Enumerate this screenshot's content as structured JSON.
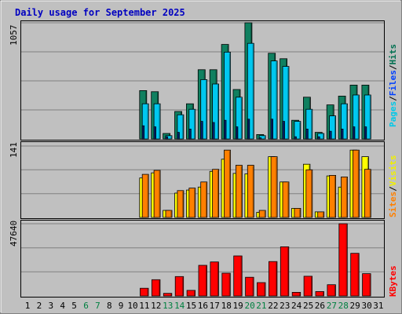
{
  "title": "Daily usage for September 2025",
  "panels": {
    "top": {
      "max_label": "1057",
      "legend": [
        {
          "text": "Pages",
          "color": "#00c8e8"
        },
        {
          "text": "/",
          "color": "#000000"
        },
        {
          "text": "Files",
          "color": "#0040ff"
        },
        {
          "text": "/",
          "color": "#000000"
        },
        {
          "text": "Hits",
          "color": "#007050"
        }
      ]
    },
    "middle": {
      "max_label": "141",
      "legend": [
        {
          "text": "Sites",
          "color": "#ff8000"
        },
        {
          "text": "/",
          "color": "#000000"
        },
        {
          "text": "Visits",
          "color": "#f0f000"
        }
      ]
    },
    "bottom": {
      "max_label": "47640",
      "legend": [
        {
          "text": "KBytes",
          "color": "#ff0000"
        }
      ]
    }
  },
  "colors": {
    "hits": "#108060",
    "files": "#0030a0",
    "pages": "#00c8f0",
    "visits": "#ffff00",
    "sites": "#ff8000",
    "kbytes": "#ff0000",
    "title": "#0000c0",
    "weekend_day": "#008040",
    "weekday": "#000000"
  },
  "chart_data": {
    "type": "bar",
    "x": [
      1,
      2,
      3,
      4,
      5,
      6,
      7,
      8,
      9,
      10,
      11,
      12,
      13,
      14,
      15,
      16,
      17,
      18,
      19,
      20,
      21,
      22,
      23,
      24,
      25,
      26,
      27,
      28,
      29,
      30,
      31
    ],
    "weekend_days": [
      6,
      7,
      13,
      14,
      20,
      21,
      27,
      28
    ],
    "top": {
      "ymax": 1057,
      "series": [
        {
          "name": "Hits",
          "values": [
            0,
            0,
            0,
            0,
            0,
            0,
            0,
            0,
            0,
            0,
            440,
            430,
            50,
            250,
            320,
            630,
            630,
            860,
            450,
            1057,
            40,
            780,
            730,
            170,
            380,
            60,
            310,
            390,
            490,
            490,
            0
          ]
        },
        {
          "name": "Files",
          "values": [
            0,
            0,
            0,
            0,
            0,
            0,
            0,
            0,
            0,
            0,
            120,
            110,
            20,
            60,
            90,
            160,
            150,
            170,
            110,
            180,
            10,
            180,
            160,
            20,
            90,
            20,
            70,
            90,
            110,
            110,
            0
          ]
        },
        {
          "name": "Pages",
          "values": [
            0,
            0,
            0,
            0,
            0,
            0,
            0,
            0,
            0,
            0,
            320,
            320,
            30,
            220,
            270,
            540,
            500,
            790,
            380,
            870,
            30,
            710,
            660,
            160,
            270,
            50,
            210,
            320,
            400,
            400,
            0
          ]
        }
      ]
    },
    "middle": {
      "ymax": 141,
      "series": [
        {
          "name": "Visits",
          "values": [
            0,
            0,
            0,
            0,
            0,
            0,
            0,
            0,
            0,
            0,
            78,
            88,
            14,
            48,
            54,
            60,
            91,
            115,
            87,
            86,
            10,
            120,
            70,
            18,
            105,
            11,
            82,
            60,
            133,
            120,
            0
          ]
        },
        {
          "name": "Sites",
          "values": [
            0,
            0,
            0,
            0,
            0,
            0,
            0,
            0,
            0,
            0,
            85,
            93,
            14,
            53,
            58,
            70,
            95,
            133,
            103,
            103,
            14,
            120,
            70,
            18,
            94,
            11,
            83,
            80,
            133,
            95,
            0
          ]
        }
      ]
    },
    "bottom": {
      "ymax": 47640,
      "series": [
        {
          "name": "KBytes",
          "values": [
            0,
            0,
            0,
            0,
            0,
            0,
            0,
            0,
            0,
            0,
            5100,
            10700,
            1700,
            12800,
            3700,
            20200,
            22400,
            15000,
            26400,
            12300,
            8800,
            22700,
            32400,
            2400,
            13000,
            2900,
            7400,
            47640,
            28100,
            14700,
            0
          ]
        }
      ]
    }
  }
}
